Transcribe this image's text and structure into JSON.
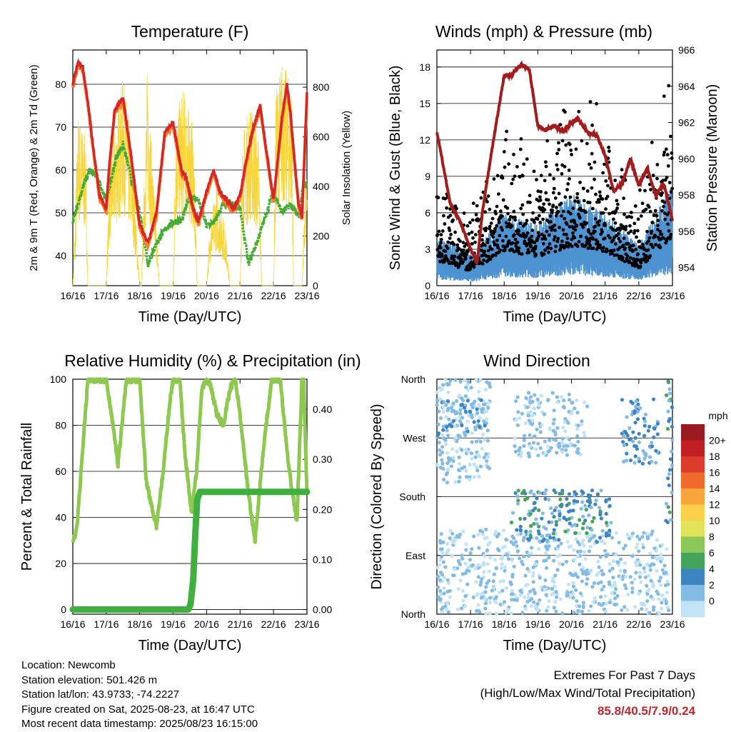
{
  "chart_data": [
    {
      "id": "temperature",
      "type": "line",
      "title": "Temperature (F)",
      "xlabel": "Time (Day/UTC)",
      "ylabel": "2m & 9m T (Red, Orange) & 2m Td (Green)",
      "y2label": "Solar Insolation (Yellow)",
      "x_ticks": [
        "16/16",
        "17/16",
        "18/16",
        "19/16",
        "20/16",
        "21/16",
        "22/16",
        "23/16"
      ],
      "ylim": [
        33,
        88
      ],
      "y_ticks": [
        40,
        50,
        60,
        70,
        80
      ],
      "y2lim": [
        0,
        950
      ],
      "y2_ticks": [
        0,
        200,
        400,
        600,
        800
      ],
      "colors": {
        "t2m": "#d62728",
        "t9m": "#f5822b",
        "td": "#44aa33",
        "solar": "#f7d53b"
      },
      "series": [
        {
          "key": "t2m",
          "x": [
            0,
            0.15,
            0.3,
            0.45,
            0.6,
            0.8,
            1.0,
            1.1,
            1.25,
            1.5,
            1.75,
            2.0,
            2.25,
            2.5,
            2.75,
            3.0,
            3.25,
            3.4,
            3.6,
            3.75,
            4.0,
            4.2,
            4.4,
            4.6,
            4.8,
            5.0,
            5.2,
            5.4,
            5.6,
            5.8,
            6.0,
            6.25,
            6.4,
            6.5,
            6.6,
            6.75,
            6.85,
            7.0
          ],
          "y": [
            80,
            85,
            84,
            76,
            66,
            54,
            51,
            62,
            74,
            77,
            63,
            47,
            43,
            50,
            69,
            71,
            60,
            58,
            51,
            48,
            55,
            60,
            55,
            53,
            51,
            54,
            63,
            70,
            75,
            64,
            53,
            72,
            80,
            74,
            65,
            52,
            49,
            78
          ]
        },
        {
          "key": "td",
          "x": [
            0,
            0.15,
            0.3,
            0.5,
            0.75,
            1.0,
            1.1,
            1.3,
            1.5,
            1.75,
            2.0,
            2.25,
            2.5,
            2.75,
            3.0,
            3.25,
            3.5,
            3.75,
            4.0,
            4.25,
            4.5,
            4.75,
            5.0,
            5.25,
            5.5,
            5.75,
            6.0,
            6.25,
            6.5,
            6.75,
            6.9,
            7.0
          ],
          "y": [
            48,
            52,
            56,
            60,
            58,
            53,
            56,
            63,
            66,
            58,
            50,
            38,
            43,
            46,
            48,
            48,
            54,
            53,
            47,
            48,
            52,
            52,
            51,
            38,
            43,
            49,
            55,
            50,
            52,
            49,
            57,
            56
          ]
        },
        {
          "key": "solar",
          "x": [
            0,
            0.08,
            0.15,
            0.38,
            0.45,
            1.0,
            1.1,
            1.5,
            1.75,
            2.0,
            2.05,
            2.23,
            2.38,
            2.6,
            3.0,
            3.08,
            3.3,
            3.6,
            3.72,
            4.0,
            4.1,
            4.3,
            4.55,
            4.7,
            5.0,
            5.08,
            5.3,
            5.55,
            5.65,
            6.0,
            6.07,
            6.25,
            6.55,
            6.6,
            6.85,
            6.97,
            7.0
          ],
          "y": [
            0,
            300,
            700,
            600,
            0,
            0,
            500,
            850,
            600,
            0,
            0,
            900,
            500,
            0,
            0,
            700,
            800,
            650,
            0,
            0,
            250,
            400,
            250,
            0,
            0,
            620,
            740,
            600,
            0,
            0,
            780,
            920,
            800,
            0,
            0,
            480,
            400
          ]
        }
      ],
      "legend": "none"
    },
    {
      "id": "winds",
      "type": "scatter",
      "title": "Winds (mph) & Pressure (mb)",
      "xlabel": "Time (Day/UTC)",
      "ylabel": "Sonic Wind & Gust (Blue, Black)",
      "y2label": "Station Pressure (Maroon)",
      "x_ticks": [
        "16/16",
        "17/16",
        "18/16",
        "19/16",
        "20/16",
        "21/16",
        "22/16",
        "23/16"
      ],
      "ylim": [
        0,
        19.4
      ],
      "y_ticks": [
        0,
        3,
        6,
        9,
        12,
        15,
        18
      ],
      "y2lim": [
        953,
        966
      ],
      "y2_ticks": [
        954,
        956,
        958,
        960,
        962,
        964,
        966
      ],
      "colors": {
        "wind": "#4e93d1",
        "gust": "#000000",
        "pressure": "#a11c1c"
      },
      "series": [
        {
          "key": "pressure",
          "x": [
            0,
            0.15,
            0.4,
            0.7,
            1.0,
            1.2,
            1.35,
            1.55,
            1.75,
            2.0,
            2.2,
            2.5,
            2.75,
            3.0,
            3.2,
            3.5,
            3.75,
            4.0,
            4.2,
            4.5,
            4.75,
            5.0,
            5.25,
            5.5,
            5.75,
            6.0,
            6.25,
            6.5,
            6.75,
            7.0
          ],
          "y": [
            961.5,
            960.0,
            957.5,
            956.5,
            955.0,
            954.3,
            957.0,
            959.5,
            961.8,
            964.6,
            964.6,
            965.2,
            964.9,
            961.8,
            961.6,
            961.8,
            961.5,
            962.0,
            962.2,
            961.4,
            961.3,
            960.2,
            958.2,
            958.6,
            960.0,
            958.5,
            959.5,
            958.0,
            958.6,
            956.6
          ]
        },
        {
          "key": "wind_band",
          "x": [
            0,
            1,
            2,
            3,
            4,
            5,
            6,
            7
          ],
          "y": [
            2.5,
            1.5,
            3.5,
            3.0,
            4.5,
            3.5,
            2.0,
            5.0
          ]
        },
        {
          "key": "gust_band",
          "x": [
            0,
            1,
            2,
            3,
            4,
            5,
            6,
            7
          ],
          "y": [
            5.0,
            3.0,
            7.0,
            6.0,
            8.0,
            7.0,
            3.5,
            10.0
          ]
        }
      ]
    },
    {
      "id": "humidity",
      "type": "line",
      "title": "Relative Humidity (%) & Precipitation (in)",
      "xlabel": "Time (Day/UTC)",
      "ylabel": "Percent & Total Rainfall",
      "x_ticks": [
        "16/16",
        "17/16",
        "18/16",
        "19/16",
        "20/16",
        "21/16",
        "22/16",
        "23/16"
      ],
      "ylim": [
        -2,
        100
      ],
      "y_ticks": [
        0,
        20,
        40,
        60,
        80,
        100
      ],
      "y2lim": [
        -0.0092,
        0.46
      ],
      "y2_ticks": [
        "0.00",
        "0.10",
        "0.20",
        "0.30",
        "0.40"
      ],
      "colors": {
        "rh": "#8ec850",
        "precip": "#3fb040"
      },
      "series": [
        {
          "key": "rh",
          "x": [
            0,
            0.12,
            0.3,
            0.45,
            0.6,
            0.8,
            1.0,
            1.2,
            1.35,
            1.5,
            1.6,
            1.75,
            2.0,
            2.2,
            2.5,
            2.7,
            2.9,
            3.0,
            3.2,
            3.35,
            3.55,
            3.7,
            3.85,
            3.95,
            4.1,
            4.3,
            4.5,
            4.7,
            4.85,
            5.0,
            5.25,
            5.45,
            5.7,
            5.95,
            6.2,
            6.45,
            6.7,
            6.85,
            6.9,
            7.0
          ],
          "y": [
            30,
            35,
            70,
            100,
            100,
            100,
            100,
            80,
            63,
            85,
            100,
            100,
            100,
            55,
            36,
            60,
            90,
            100,
            99,
            68,
            42,
            60,
            95,
            99,
            98,
            85,
            80,
            96,
            100,
            85,
            50,
            30,
            70,
            100,
            100,
            62,
            38,
            100,
            100,
            50
          ]
        },
        {
          "key": "precip",
          "x": [
            0,
            3.3,
            3.45,
            3.52,
            3.6,
            3.66,
            3.72,
            3.8,
            4.5,
            7.0
          ],
          "y": [
            0,
            0,
            0,
            0.01,
            0.06,
            0.15,
            0.22,
            0.235,
            0.235,
            0.235
          ]
        }
      ]
    },
    {
      "id": "direction",
      "type": "scatter",
      "title": "Wind Direction",
      "xlabel": "Time (Day/UTC)",
      "ylabel": "Direction (Colored By Speed)",
      "x_ticks": [
        "16/16",
        "17/16",
        "18/16",
        "19/16",
        "20/16",
        "21/16",
        "22/16",
        "23/16"
      ],
      "y_ticks": [
        "North",
        "East",
        "South",
        "West",
        "North"
      ],
      "ylim": [
        0,
        360
      ],
      "colorbar": {
        "title": "mph",
        "labels": [
          "20+",
          "18",
          "16",
          "14",
          "12",
          "10",
          "8",
          "6",
          "4",
          "2",
          "0"
        ],
        "colors": [
          "#9b1a1f",
          "#c21f24",
          "#dd3b2b",
          "#f06a2c",
          "#f8a53c",
          "#fbd04a",
          "#e2e25a",
          "#8cc75a",
          "#45a45c",
          "#3e84c3",
          "#84bbe4",
          "#c1e3f6"
        ]
      },
      "clusters": [
        {
          "x": [
            0,
            1.6
          ],
          "y": [
            200,
            360
          ],
          "speed": 1.5
        },
        {
          "x": [
            0,
            1.5
          ],
          "y": [
            270,
            330
          ],
          "speed": 2.5
        },
        {
          "x": [
            0,
            6.9
          ],
          "y": [
            0,
            130
          ],
          "speed": 1.5
        },
        {
          "x": [
            2.2,
            5.2
          ],
          "y": [
            110,
            190
          ],
          "speed": 3.5
        },
        {
          "x": [
            2.3,
            4.5
          ],
          "y": [
            240,
            340
          ],
          "speed": 1.5
        },
        {
          "x": [
            5.5,
            6.6
          ],
          "y": [
            230,
            330
          ],
          "speed": 3.0
        },
        {
          "x": [
            6.8,
            7.0
          ],
          "y": [
            140,
            360
          ],
          "speed": 3.5
        }
      ]
    }
  ],
  "footer": {
    "location": "Location: Newcomb",
    "elevation": "Station elevation: 501.426 m",
    "latlon": "Station lat/lon: 43.9733; -74.2227",
    "created": "Figure created on Sat, 2025-08-23, at 16:47 UTC",
    "recent": "Most recent data timestamp: 2025/08/23 16:15:00",
    "extremes_title": "Extremes For Past 7 Days",
    "extremes_sub": "(High/Low/Max Wind/Total Precipitation)",
    "extremes_values": "85.8/40.5/7.9/0.24"
  }
}
